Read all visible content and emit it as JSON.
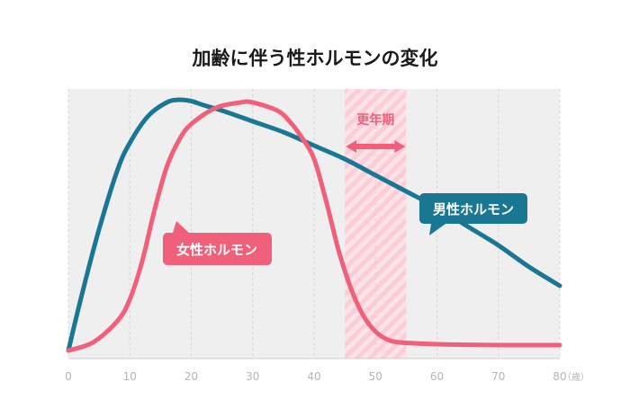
{
  "chart_data": {
    "type": "line",
    "title": "加齢に伴う性ホルモンの変化",
    "xlim": [
      0,
      80
    ],
    "x_ticks": [
      "0",
      "10",
      "20",
      "30",
      "40",
      "50",
      "60",
      "70",
      "80"
    ],
    "x_unit": "（歳）",
    "grid": "vertical dashed",
    "highlight_band": {
      "from": 45,
      "to": 55,
      "label": "更年期"
    },
    "series": [
      {
        "name": "男性ホルモン",
        "color": "#1a7794",
        "x": [
          0,
          2,
          5,
          8,
          10,
          13,
          16,
          18,
          20,
          22,
          25,
          30,
          35,
          40,
          45,
          50,
          55,
          60,
          65,
          70,
          75,
          80
        ],
        "y": [
          3,
          22,
          48,
          70,
          80,
          90,
          95,
          96,
          95.5,
          94,
          92,
          88,
          84,
          79,
          74,
          68,
          62,
          56,
          49,
          42,
          34,
          27
        ]
      },
      {
        "name": "女性ホルモン",
        "color": "#f0607a",
        "x": [
          0,
          4,
          8,
          10,
          12,
          14,
          16,
          18,
          20,
          24,
          28,
          30,
          34,
          36,
          38,
          40,
          42,
          44,
          46,
          48,
          50,
          52,
          54,
          58,
          62,
          70,
          80
        ],
        "y": [
          3,
          6,
          14,
          22,
          36,
          55,
          71,
          81,
          87,
          93,
          95,
          95,
          92,
          88,
          82,
          74,
          58,
          40,
          26,
          16,
          10,
          7,
          6,
          5.5,
          5.2,
          5,
          5
        ]
      }
    ]
  }
}
